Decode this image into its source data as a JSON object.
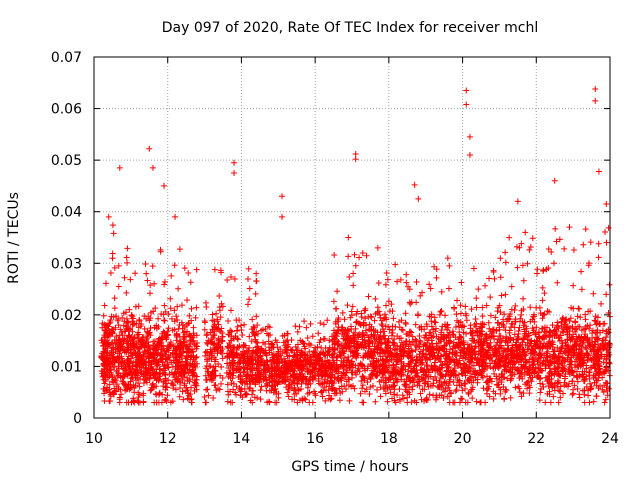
{
  "chart_data": {
    "type": "scatter",
    "title": "Day 097 of 2020, Rate Of TEC Index for receiver mchl",
    "xlabel": "GPS time / hours",
    "ylabel": "ROTI / TECUs",
    "xlim": [
      10,
      24
    ],
    "ylim": [
      0,
      0.07
    ],
    "x_ticks": [
      10,
      12,
      14,
      16,
      18,
      20,
      22,
      24
    ],
    "x_tick_labels": [
      "10",
      "12",
      "14",
      "16",
      "18",
      "20",
      "22",
      "24"
    ],
    "y_ticks": [
      0,
      0.01,
      0.02,
      0.03,
      0.04,
      0.05,
      0.06,
      0.07
    ],
    "y_tick_labels": [
      "0",
      "0.01",
      "0.02",
      "0.03",
      "0.04",
      "0.05",
      "0.06",
      "0.07"
    ],
    "grid": true,
    "marker": "+",
    "series_color": "#ff0000",
    "data_gaps_hours": [
      [
        12.8,
        13.0
      ],
      [
        13.5,
        13.6
      ]
    ],
    "notable_points": [
      {
        "x": 10.7,
        "y": 0.0485
      },
      {
        "x": 11.5,
        "y": 0.0522
      },
      {
        "x": 11.6,
        "y": 0.0485
      },
      {
        "x": 11.9,
        "y": 0.045
      },
      {
        "x": 13.8,
        "y": 0.0495
      },
      {
        "x": 13.8,
        "y": 0.0475
      },
      {
        "x": 15.1,
        "y": 0.043
      },
      {
        "x": 15.1,
        "y": 0.039
      },
      {
        "x": 17.1,
        "y": 0.0512
      },
      {
        "x": 17.1,
        "y": 0.0502
      },
      {
        "x": 18.7,
        "y": 0.0452
      },
      {
        "x": 18.8,
        "y": 0.0425
      },
      {
        "x": 20.1,
        "y": 0.0635
      },
      {
        "x": 20.1,
        "y": 0.0608
      },
      {
        "x": 20.2,
        "y": 0.0545
      },
      {
        "x": 20.2,
        "y": 0.051
      },
      {
        "x": 21.5,
        "y": 0.042
      },
      {
        "x": 22.5,
        "y": 0.046
      },
      {
        "x": 23.6,
        "y": 0.0638
      },
      {
        "x": 23.6,
        "y": 0.0615
      },
      {
        "x": 23.7,
        "y": 0.0478
      },
      {
        "x": 23.9,
        "y": 0.0415
      },
      {
        "x": 10.4,
        "y": 0.039
      },
      {
        "x": 12.2,
        "y": 0.039
      },
      {
        "x": 14.4,
        "y": 0.028
      },
      {
        "x": 16.9,
        "y": 0.035
      },
      {
        "x": 17.7,
        "y": 0.033
      },
      {
        "x": 19.6,
        "y": 0.031
      },
      {
        "x": 21.7,
        "y": 0.036
      },
      {
        "x": 22.9,
        "y": 0.037
      },
      {
        "x": 18.5,
        "y": 0.003
      },
      {
        "x": 11.7,
        "y": 0.003
      },
      {
        "x": 14.1,
        "y": 0.0045
      }
    ],
    "density_profile": [
      {
        "x0": 10.2,
        "x1": 11.0,
        "base": 0.0115,
        "spread": 0.006,
        "high": 0.038,
        "n": 360
      },
      {
        "x0": 11.0,
        "x1": 11.8,
        "base": 0.011,
        "spread": 0.006,
        "high": 0.033,
        "n": 330
      },
      {
        "x0": 11.8,
        "x1": 12.8,
        "base": 0.0115,
        "spread": 0.006,
        "high": 0.033,
        "n": 360
      },
      {
        "x0": 13.0,
        "x1": 13.5,
        "base": 0.012,
        "spread": 0.007,
        "high": 0.029,
        "n": 140
      },
      {
        "x0": 13.6,
        "x1": 14.5,
        "base": 0.0105,
        "spread": 0.005,
        "high": 0.029,
        "n": 300
      },
      {
        "x0": 14.5,
        "x1": 16.5,
        "base": 0.0095,
        "spread": 0.0045,
        "high": 0.02,
        "n": 620
      },
      {
        "x0": 16.5,
        "x1": 18.0,
        "base": 0.0125,
        "spread": 0.006,
        "high": 0.032,
        "n": 520
      },
      {
        "x0": 18.0,
        "x1": 19.5,
        "base": 0.011,
        "spread": 0.006,
        "high": 0.03,
        "n": 480
      },
      {
        "x0": 19.5,
        "x1": 21.0,
        "base": 0.012,
        "spread": 0.006,
        "high": 0.03,
        "n": 500
      },
      {
        "x0": 21.0,
        "x1": 22.5,
        "base": 0.0125,
        "spread": 0.006,
        "high": 0.035,
        "n": 520
      },
      {
        "x0": 22.5,
        "x1": 24.0,
        "base": 0.0115,
        "spread": 0.006,
        "high": 0.037,
        "n": 520
      }
    ]
  }
}
